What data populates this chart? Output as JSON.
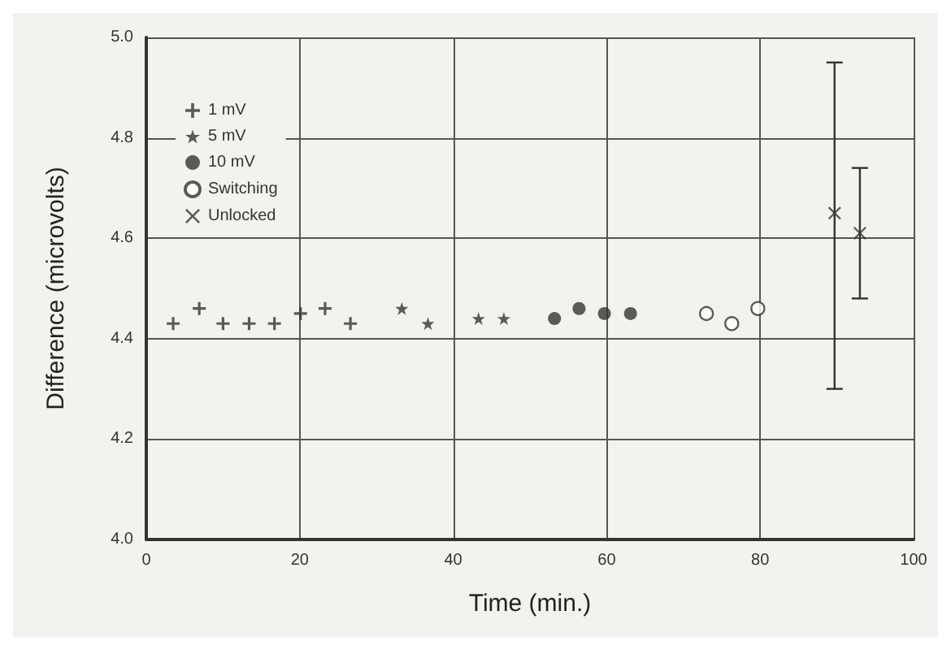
{
  "chart_data": {
    "type": "scatter",
    "xlabel": "Time (min.)",
    "ylabel": "Difference (microvolts)",
    "xlim": [
      0,
      100
    ],
    "xticks": [
      0,
      20,
      40,
      60,
      80,
      100
    ],
    "ylim": [
      4.0,
      5.0
    ],
    "yticks": [
      {
        "value": 4,
        "label": "4.0"
      },
      4.2,
      4.4,
      4.6,
      4.8,
      {
        "value": 5,
        "label": "5.0"
      }
    ],
    "grid": true,
    "legend": "top left",
    "series": [
      {
        "name": "1 mV",
        "color": "#333333",
        "marker": "plus",
        "x": [
          3.5,
          6.9,
          10,
          13.4,
          16.7,
          20.1,
          23.3,
          26.6
        ],
        "values": [
          4.43,
          4.46,
          4.43,
          4.43,
          4.43,
          4.45,
          4.46,
          4.43
        ]
      },
      {
        "name": "5 mV",
        "color": "#333333",
        "marker": "star",
        "x": [
          33.3,
          36.7,
          43.3,
          46.6
        ],
        "values": [
          4.46,
          4.43,
          4.44,
          4.44
        ]
      },
      {
        "name": "10 mV",
        "color": "#333333",
        "marker": "circle",
        "x": [
          53.2,
          56.4,
          59.7,
          63.1
        ],
        "values": [
          4.44,
          4.46,
          4.45,
          4.45
        ]
      },
      {
        "name": "Switching",
        "color": "#333333",
        "marker": "open_circle",
        "x": [
          73,
          76.3,
          79.7
        ],
        "values": [
          4.45,
          4.43,
          4.46
        ]
      },
      {
        "name": "Unlocked",
        "color": "#333333",
        "marker": "x",
        "x": [
          89.7,
          93
        ],
        "values": [
          4.65,
          4.61
        ],
        "errors": [
          [
            4.3,
            4.95
          ],
          [
            4.48,
            4.74
          ]
        ]
      }
    ]
  }
}
